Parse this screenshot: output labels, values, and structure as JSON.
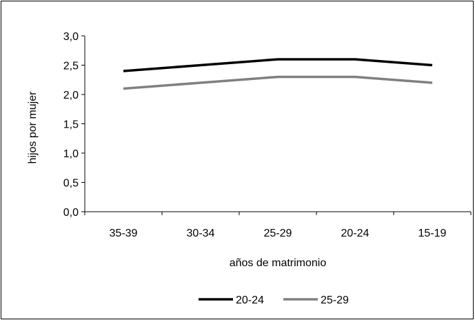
{
  "chart_data": {
    "type": "line",
    "categories": [
      "35-39",
      "30-34",
      "25-29",
      "20-24",
      "15-19"
    ],
    "series": [
      {
        "name": "20-24",
        "color": "#000000",
        "values": [
          2.4,
          2.5,
          2.6,
          2.6,
          2.5
        ]
      },
      {
        "name": "25-29",
        "color": "#808080",
        "values": [
          2.1,
          2.2,
          2.3,
          2.3,
          2.2
        ]
      }
    ],
    "title": "",
    "xlabel": "años de matrimonio",
    "ylabel": "hijos por mujer",
    "ylim": [
      0,
      3
    ],
    "yticks": [
      "0,0",
      "0,5",
      "1,0",
      "1,5",
      "2,0",
      "2,5",
      "3,0"
    ],
    "ytick_values": [
      0,
      0.5,
      1,
      1.5,
      2,
      2.5,
      3
    ],
    "grid": false,
    "legend": "bottom"
  }
}
